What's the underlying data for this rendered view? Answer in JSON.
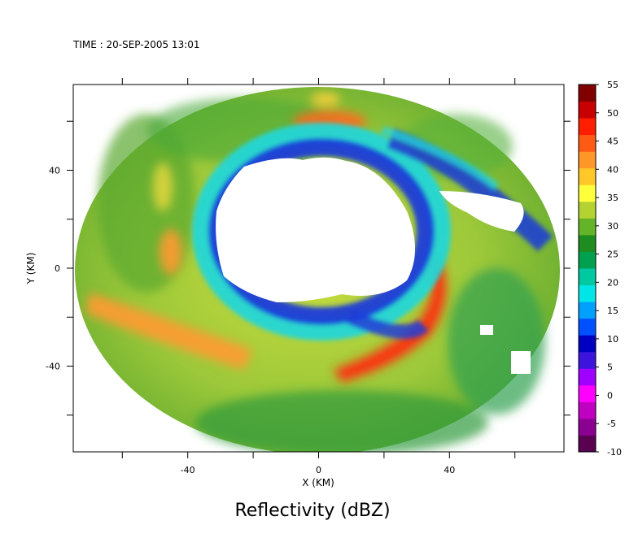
{
  "header": {
    "time_label": "TIME : 20-SEP-2005 13:01"
  },
  "footer": {
    "title": "Reflectivity (dBZ)"
  },
  "chart_data": {
    "type": "heatmap",
    "title": "Reflectivity (dBZ)",
    "subtitle": "TIME : 20-SEP-2005 13:01",
    "xlabel": "X (KM)",
    "ylabel": "Y (KM)",
    "xlim": [
      -75,
      75
    ],
    "ylim": [
      -75,
      75
    ],
    "x_ticks": [
      -40,
      0,
      40
    ],
    "y_ticks": [
      -40,
      0,
      40
    ],
    "colorbar": {
      "label": "dBZ",
      "ticks": [
        55,
        50,
        45,
        40,
        35,
        30,
        25,
        20,
        15,
        10,
        5,
        0,
        -5,
        -10
      ],
      "range": [
        -10,
        55
      ],
      "colors": [
        "#5a0050",
        "#8a0090",
        "#c000c0",
        "#ff00ff",
        "#a000ff",
        "#3c14dc",
        "#0000c0",
        "#0050ff",
        "#00a0ff",
        "#00e6e6",
        "#00c8a0",
        "#00a050",
        "#1e8c1e",
        "#64b428",
        "#b4d232",
        "#ffff3c",
        "#ffc828",
        "#ff9628",
        "#ff5a14",
        "#ff1e00",
        "#c80000",
        "#800000"
      ]
    },
    "annotations": "Radar reflectivity of a tropical cyclone eye; echo-free eye near center, spiral rainbands with 40-50 dBZ cores to the southeast and southwest."
  }
}
